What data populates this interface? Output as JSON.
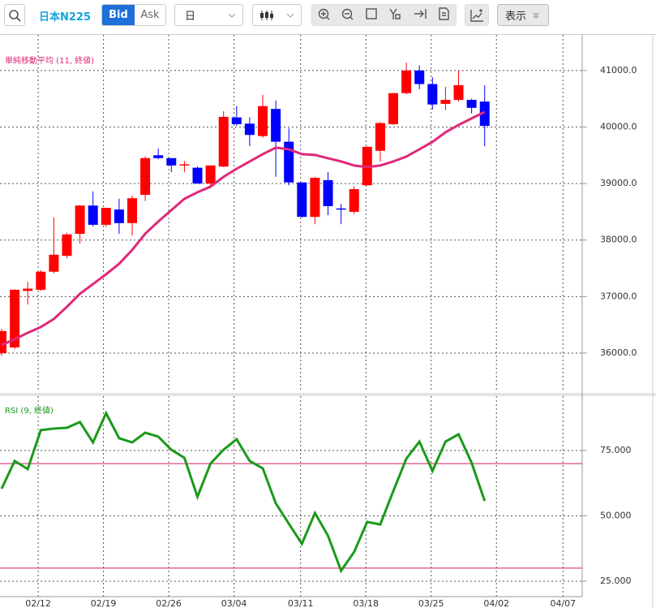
{
  "toolbar": {
    "symbol": "日本N225",
    "bid": "Bid",
    "ask": "Ask",
    "period": "日",
    "display": "表示"
  },
  "chart_data": [
    {
      "type": "candlestick",
      "indicator": {
        "name": "単純移動平均 (11, 終値)",
        "color": "#e0287a",
        "values": [
          36144,
          36244,
          36359,
          36460,
          36603,
          36819,
          37049,
          37221,
          37394,
          37580,
          37825,
          38112,
          38328,
          38529,
          38730,
          38845,
          38945,
          39118,
          39262,
          39391,
          39520,
          39635,
          39606,
          39520,
          39506,
          39448,
          39391,
          39319,
          39290,
          39319,
          39391,
          39477,
          39606,
          39736,
          39908,
          40037,
          40152,
          40267
        ]
      },
      "open": [
        36000,
        36100,
        37100,
        37120,
        37440,
        37720,
        38110,
        38610,
        38270,
        38540,
        38300,
        38800,
        39500,
        39450,
        39320,
        39280,
        39000,
        39300,
        40170,
        40060,
        39840,
        40320,
        39740,
        39020,
        38410,
        39060,
        38560,
        38500,
        38970,
        39580,
        40050,
        40600,
        41000,
        40760,
        40410,
        40480,
        40480,
        40450
      ],
      "high": [
        36430,
        37130,
        37260,
        37470,
        38400,
        38130,
        38620,
        38860,
        38570,
        38730,
        38790,
        39480,
        39620,
        39450,
        39400,
        39300,
        39320,
        40280,
        40370,
        40170,
        40570,
        40470,
        39980,
        39020,
        39120,
        39200,
        38640,
        38950,
        39660,
        40090,
        40600,
        41140,
        41090,
        40880,
        40710,
        41000,
        40500,
        40740
      ],
      "low": [
        35950,
        36070,
        36860,
        37100,
        37410,
        37680,
        37940,
        38240,
        38230,
        38110,
        38080,
        38690,
        39430,
        39200,
        39200,
        39000,
        38920,
        39290,
        40020,
        39660,
        39810,
        39120,
        38970,
        38400,
        38280,
        38440,
        38280,
        38460,
        38960,
        39390,
        40040,
        40580,
        40670,
        40310,
        40300,
        40450,
        40240,
        39660
      ],
      "close": [
        36390,
        37120,
        37140,
        37440,
        37740,
        38100,
        38610,
        38270,
        38570,
        38300,
        38740,
        39450,
        39450,
        39320,
        39340,
        39000,
        39320,
        40180,
        40050,
        39860,
        40370,
        39740,
        39020,
        38410,
        39100,
        38600,
        38540,
        38900,
        39650,
        40070,
        40600,
        41000,
        40760,
        40400,
        40480,
        40740,
        40340,
        40020
      ],
      "up_color": "#ff0000",
      "down_color": "#0000ff",
      "xlim": [
        -0.124,
        44.47
      ],
      "ylim": [
        35310,
        41630
      ],
      "yticks": [
        {
          "value": 36000,
          "label": "36000.0"
        },
        {
          "value": 37000,
          "label": "37000.0"
        },
        {
          "value": 38000,
          "label": "38000.0"
        },
        {
          "value": 39000,
          "label": "39000.0"
        },
        {
          "value": 40000,
          "label": "40000.0"
        },
        {
          "value": 41000,
          "label": "41000.0"
        }
      ],
      "grid": true
    },
    {
      "type": "line",
      "series": [
        {
          "name": "RSI (9, 終値)",
          "color": "#1a9a1a",
          "values": [
            60.4,
            71,
            67.9,
            82.8,
            83.4,
            83.7,
            85.9,
            78.1,
            89.3,
            79.7,
            78.1,
            81.8,
            80.3,
            75.3,
            72.2,
            57.3,
            70,
            75.3,
            79.3,
            71,
            68.2,
            54.8,
            47,
            39.3,
            51.1,
            42.4,
            29,
            36.2,
            47.7,
            46.7,
            59.5,
            71.9,
            78.4,
            67.2,
            78.4,
            81.2,
            70.3,
            55.7
          ]
        }
      ],
      "reference_lines": [
        70,
        30
      ],
      "reference_color": "#d81b60",
      "xlim": [
        -0.124,
        44.47
      ],
      "ylim": [
        19.1,
        95.8
      ],
      "yticks": [
        {
          "value": 25,
          "label": "25.000"
        },
        {
          "value": 50,
          "label": "50.000"
        },
        {
          "value": 75,
          "label": "75.000"
        }
      ],
      "xticks": [
        {
          "value": 2.8,
          "label": "02/12"
        },
        {
          "value": 7.8,
          "label": "02/19"
        },
        {
          "value": 12.8,
          "label": "02/26"
        },
        {
          "value": 17.8,
          "label": "03/04"
        },
        {
          "value": 22.9,
          "label": "03/11"
        },
        {
          "value": 27.9,
          "label": "03/18"
        },
        {
          "value": 32.9,
          "label": "03/25"
        },
        {
          "value": 37.9,
          "label": "04/02"
        },
        {
          "value": 43.0,
          "label": "04/07"
        }
      ],
      "grid": true
    }
  ]
}
